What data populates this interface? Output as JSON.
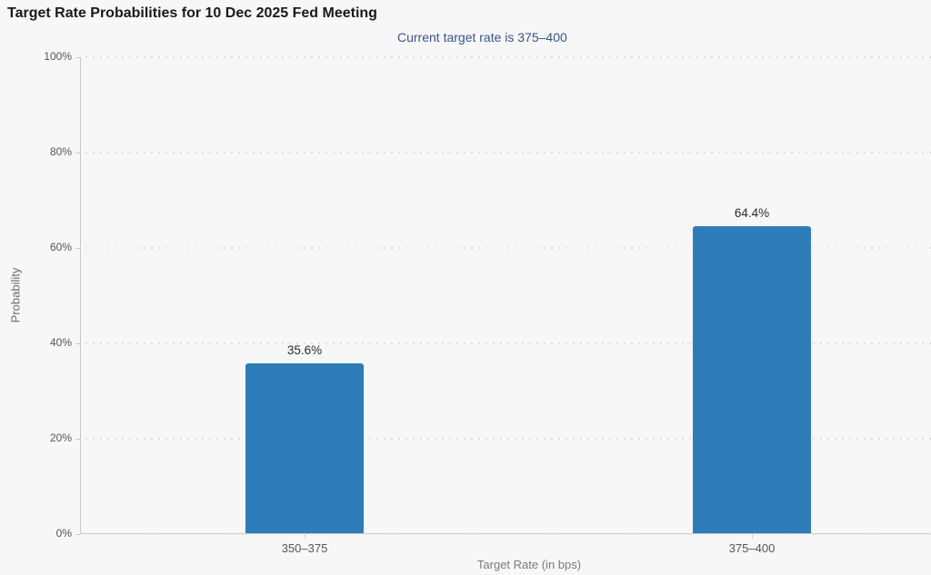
{
  "page": {
    "title": "Target Rate Probabilities for 10 Dec 2025 Fed Meeting",
    "subtitle": "Current target rate is 375–400"
  },
  "colors": {
    "bar": "#2e7cb8",
    "subtitle_text": "#3a5390",
    "gridline": "#e0e0e0",
    "axis": "#c8c8c8",
    "page_background": "#f7f7f7"
  },
  "chart_data": {
    "type": "bar",
    "title": "Target Rate Probabilities for 10 Dec 2025 Fed Meeting",
    "subtitle": "Current target rate is 375–400",
    "categories": [
      "350–375",
      "375–400"
    ],
    "values": [
      35.6,
      64.4
    ],
    "value_labels": [
      "35.6%",
      "64.4%"
    ],
    "xlabel": "Target Rate (in bps)",
    "ylabel": "Probability",
    "ylim": [
      0,
      100
    ],
    "yticks": [
      0,
      20,
      40,
      60,
      80,
      100
    ],
    "ytick_labels": [
      "0%",
      "20%",
      "40%",
      "60%",
      "80%",
      "100%"
    ],
    "grid": "horizontal-dotted",
    "legend": "none",
    "bar_color": "#2e7cb8"
  }
}
